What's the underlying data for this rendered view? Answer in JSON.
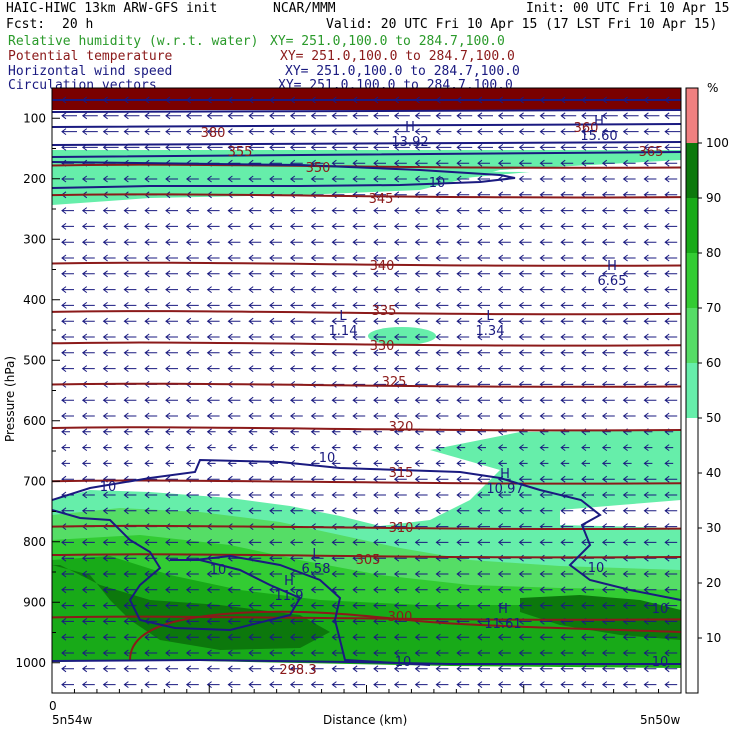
{
  "header": {
    "model": "HAIC-HIWC 13km ARW-GFS init",
    "org": "NCAR/MMM",
    "init": "Init: 00 UTC Fri 10 Apr 15",
    "fcst_label": "Fcst:",
    "fcst_value": "20 h",
    "valid": "Valid: 20 UTC Fri 10 Apr 15 (17 LST Fri 10 Apr 15)"
  },
  "fields": [
    {
      "name": "Relative humidity (w.r.t. water)",
      "xy": "XY= 251.0,100.0 to 284.7,100.0",
      "color": "#2a9a2a"
    },
    {
      "name": "Potential temperature",
      "xy": "XY= 251.0,100.0 to 284.7,100.0",
      "color": "#8b1a1a"
    },
    {
      "name": "Horizontal wind speed",
      "xy": "XY= 251.0,100.0 to 284.7,100.0",
      "color": "#1a1a80"
    },
    {
      "name": "Circulation vectors",
      "xy": "XY= 251.0,100.0 to 284.7,100.0",
      "color": "#1a1a80"
    }
  ],
  "chart_data": {
    "type": "heatmap",
    "xlabel": "Distance (km)",
    "ylabel": "Pressure (hPa)",
    "x_tick_label": "0",
    "x_left_label": "5n54w",
    "x_right_label": "5n50w",
    "y_ticks": [
      100,
      200,
      300,
      400,
      500,
      600,
      700,
      800,
      900,
      1000
    ],
    "ylim": [
      50,
      1050
    ],
    "colorbar": {
      "unit": "%",
      "ticks": [
        10,
        20,
        30,
        40,
        50,
        60,
        70,
        80,
        90,
        100
      ],
      "levels": [
        {
          "from": 0,
          "to": 50,
          "color": "#ffffff"
        },
        {
          "from": 50,
          "to": 60,
          "color": "#66eeaa"
        },
        {
          "from": 60,
          "to": 70,
          "color": "#55dd66"
        },
        {
          "from": 70,
          "to": 80,
          "color": "#33cc33"
        },
        {
          "from": 80,
          "to": 90,
          "color": "#18aa18"
        },
        {
          "from": 90,
          "to": 100,
          "color": "#0c780c"
        },
        {
          "from": 100,
          "to": 110,
          "color": "#f08080"
        }
      ]
    },
    "theta_contours": [
      {
        "label": "305",
        "p": 822
      },
      {
        "label": "310",
        "p": 775
      },
      {
        "label": "315",
        "p": 700
      },
      {
        "label": "320",
        "p": 612
      },
      {
        "label": "325",
        "p": 540
      },
      {
        "label": "330",
        "p": 472
      },
      {
        "label": "335",
        "p": 420
      },
      {
        "label": "340",
        "p": 340
      },
      {
        "label": "345",
        "p": 227
      },
      {
        "label": "350",
        "p": 178
      },
      {
        "label": "355",
        "p": 150
      },
      {
        "label": "365",
        "p": 150
      },
      {
        "label": "360",
        "p": 118
      },
      {
        "label": "300",
        "p": 925
      },
      {
        "label": "380",
        "p": 125
      },
      {
        "label": "298.3",
        "p": 1010
      }
    ],
    "speed_labels": [
      "10",
      "10",
      "10",
      "10",
      "10",
      "10",
      "10",
      "10"
    ],
    "extrema": [
      {
        "type": "L",
        "value": "1.14"
      },
      {
        "type": "L",
        "value": "1.34"
      },
      {
        "type": "H",
        "value": "6.65"
      },
      {
        "type": "H",
        "value": "10.97"
      },
      {
        "type": "L",
        "value": "6.58"
      },
      {
        "type": "H",
        "value": "11.9"
      },
      {
        "type": "H",
        "value": "11.61"
      },
      {
        "type": "H",
        "value": "15.60"
      },
      {
        "type": "H",
        "value": "13.92"
      }
    ],
    "grid": false,
    "colors": {
      "theta": "#8b1a1a",
      "speed": "#1a1a80",
      "vectors": "#1a1a80",
      "rh_label": "#2a9a2a"
    }
  }
}
